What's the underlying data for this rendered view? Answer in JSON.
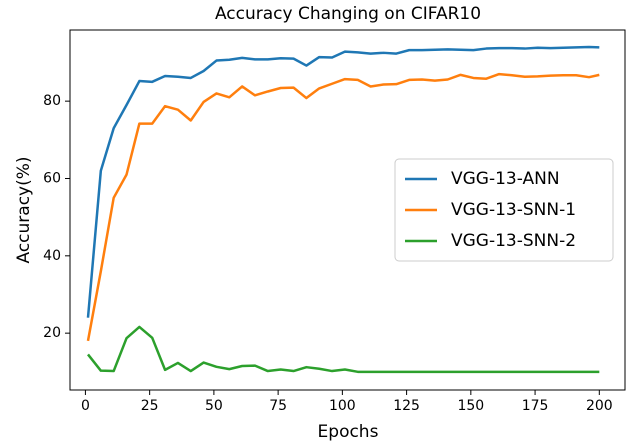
{
  "chart_data": {
    "type": "line",
    "title": "Accuracy Changing on CIFAR10",
    "xlabel": "Epochs",
    "ylabel": "Accuracy(%)",
    "x": [
      1,
      6,
      11,
      16,
      21,
      26,
      31,
      36,
      41,
      46,
      51,
      56,
      61,
      66,
      71,
      76,
      81,
      86,
      91,
      96,
      101,
      106,
      111,
      116,
      121,
      126,
      131,
      136,
      141,
      146,
      151,
      156,
      161,
      166,
      171,
      176,
      181,
      186,
      191,
      196,
      200
    ],
    "series": [
      {
        "name": "VGG-13-ANN",
        "color": "#1f77b4",
        "values": [
          24,
          62,
          73,
          79,
          85.2,
          85,
          86.5,
          86.3,
          86,
          87.8,
          90.5,
          90.7,
          91.2,
          90.8,
          90.8,
          91.1,
          91,
          89.2,
          91.4,
          91.3,
          92.8,
          92.6,
          92.3,
          92.5,
          92.3,
          93.2,
          93.2,
          93.3,
          93.4,
          93.3,
          93.2,
          93.6,
          93.7,
          93.7,
          93.6,
          93.8,
          93.7,
          93.8,
          93.9,
          94,
          93.9
        ]
      },
      {
        "name": "VGG-13-SNN-1",
        "color": "#ff7f0e",
        "values": [
          18,
          36,
          55,
          61,
          74.2,
          74.2,
          78.7,
          77.8,
          75,
          79.8,
          82,
          81,
          83.8,
          81.5,
          82.5,
          83.4,
          83.5,
          80.8,
          83.3,
          84.5,
          85.7,
          85.5,
          83.8,
          84.3,
          84.4,
          85.5,
          85.6,
          85.3,
          85.6,
          86.8,
          86,
          85.8,
          87,
          86.7,
          86.3,
          86.4,
          86.6,
          86.7,
          86.7,
          86.2,
          86.8
        ]
      },
      {
        "name": "VGG-13-SNN-2",
        "color": "#2ca02c",
        "values": [
          14.5,
          10.3,
          10.2,
          18.7,
          21.6,
          18.8,
          10.5,
          12.3,
          10.2,
          12.4,
          11.3,
          10.7,
          11.5,
          11.6,
          10.2,
          10.6,
          10.2,
          11.2,
          10.8,
          10.2,
          10.6,
          10,
          10,
          10,
          10,
          10,
          10,
          10,
          10,
          10,
          10,
          10,
          10,
          10,
          10,
          10,
          10,
          10,
          10,
          10,
          10
        ]
      }
    ],
    "xlim": [
      -6,
      210
    ],
    "ylim": [
      5.3,
      98.4
    ],
    "xticks": [
      0,
      25,
      50,
      75,
      100,
      125,
      150,
      175,
      200
    ],
    "yticks": [
      20,
      40,
      60,
      80
    ],
    "legend": "center right",
    "grid": false
  }
}
